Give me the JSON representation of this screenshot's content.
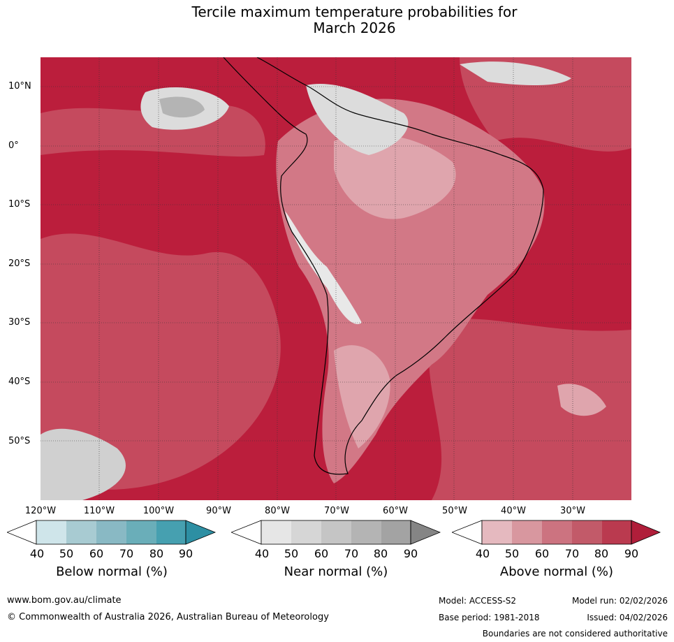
{
  "title_line1": "Tercile maximum temperature probabilities for",
  "title_line2": "March 2026",
  "lat_labels": [
    "10°N",
    "0°",
    "10°S",
    "20°S",
    "30°S",
    "40°S",
    "50°S"
  ],
  "lon_labels": [
    "120°W",
    "110°W",
    "100°W",
    "90°W",
    "80°W",
    "70°W",
    "60°W",
    "50°W",
    "40°W",
    "30°W"
  ],
  "colorbars": [
    {
      "label": "Below normal (%)",
      "ticks": [
        "40",
        "50",
        "60",
        "70",
        "80",
        "90"
      ],
      "colors": [
        "#cfe5ea",
        "#a8cbd2",
        "#89b9c4",
        "#6aaeb9",
        "#46a0b0",
        "#2d8fa3"
      ]
    },
    {
      "label": "Near normal (%)",
      "ticks": [
        "40",
        "50",
        "60",
        "70",
        "80",
        "90"
      ],
      "colors": [
        "#e6e6e6",
        "#d6d6d6",
        "#c5c5c5",
        "#b4b4b4",
        "#a3a3a3",
        "#858585"
      ]
    },
    {
      "label": "Above normal (%)",
      "ticks": [
        "40",
        "50",
        "60",
        "70",
        "80",
        "90"
      ],
      "colors": [
        "#e5b9bf",
        "#d8979f",
        "#cc7380",
        "#c25a69",
        "#ba3a4f",
        "#b01e3a"
      ]
    }
  ],
  "footer": {
    "url": "www.bom.gov.au/climate",
    "copyright": "© Commonwealth of Australia 2026, Australian Bureau of Meteorology",
    "model": "Model: ACCESS-S2",
    "base_period": "Base period: 1981-2018",
    "model_run": "Model run: 02/02/2026",
    "issued": "Issued: 04/02/2026",
    "disclaimer": "Boundaries are not considered authoritative"
  },
  "map_colors": {
    "deep_red": "#bb1e3c",
    "mid_red": "#c54a5e",
    "light_red": "#d27886",
    "pale_red": "#dfa5ad",
    "light_grey": "#dcdcdc",
    "mid_grey": "#b4b4b4"
  }
}
